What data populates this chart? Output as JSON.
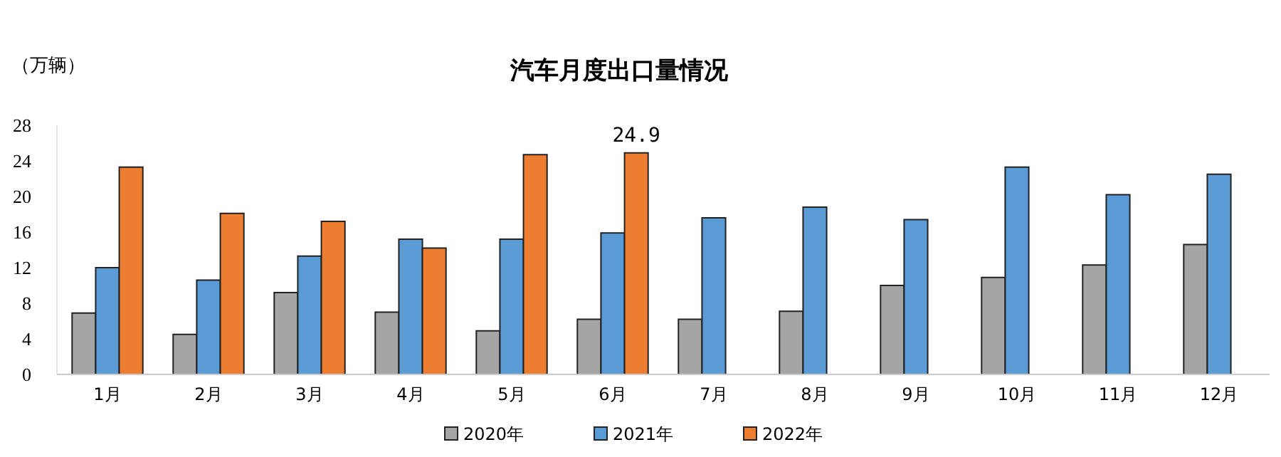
{
  "chart_data": {
    "type": "bar",
    "title": "汽车月度出口量情况",
    "ylabel": "（万辆）",
    "categories": [
      "1月",
      "2月",
      "3月",
      "4月",
      "5月",
      "6月",
      "7月",
      "8月",
      "9月",
      "10月",
      "11月",
      "12月"
    ],
    "series": [
      {
        "name": "2020年",
        "color": "#a5a5a5",
        "values": [
          6.9,
          4.5,
          9.2,
          7.0,
          4.9,
          6.2,
          6.2,
          7.1,
          10.0,
          10.9,
          12.3,
          14.6
        ]
      },
      {
        "name": "2021年",
        "color": "#5b9bd5",
        "values": [
          12.0,
          10.6,
          13.3,
          15.2,
          15.2,
          15.9,
          17.6,
          18.8,
          17.4,
          23.3,
          20.2,
          22.5
        ]
      },
      {
        "name": "2022年",
        "color": "#ed7d31",
        "values": [
          23.3,
          18.1,
          17.2,
          14.2,
          24.7,
          24.9,
          null,
          null,
          null,
          null,
          null,
          null
        ],
        "value_labels": [
          null,
          null,
          null,
          null,
          null,
          "24.9",
          null,
          null,
          null,
          null,
          null,
          null
        ]
      }
    ],
    "ylim": [
      0,
      28
    ],
    "yticks": [
      0,
      4,
      8,
      12,
      16,
      20,
      24,
      28
    ],
    "grid": false,
    "legend": "bottom"
  }
}
